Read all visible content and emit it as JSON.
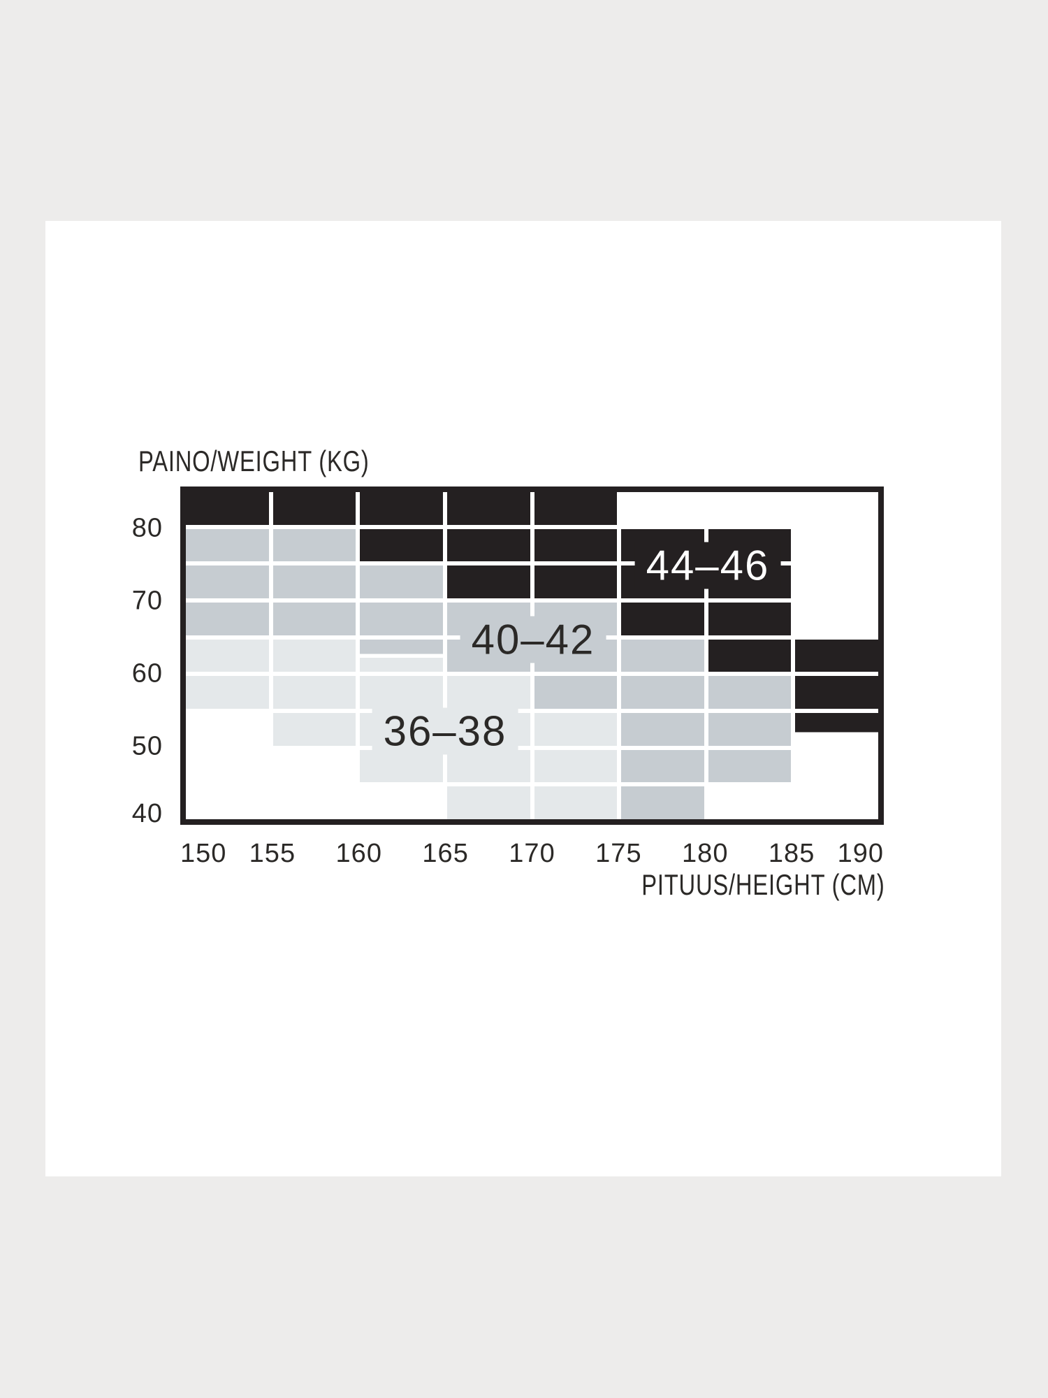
{
  "page": {
    "background_color": "#edeceb",
    "card_color": "#ffffff"
  },
  "colors": {
    "black_region": "#242021",
    "medium_gray_region": "#c6ccd1",
    "light_gray_region": "#e4e8ea",
    "empty_region": "#ffffff",
    "gridline": "#ffffff",
    "text": "#2b2927"
  },
  "chart_data": {
    "type": "heatmap",
    "title": "",
    "ylabel": "PAINO/WEIGHT (KG)",
    "xlabel": "PITUUS/HEIGHT (CM)",
    "x_ticks": [
      "150",
      "155",
      "160",
      "165",
      "170",
      "175",
      "180",
      "185",
      "190"
    ],
    "y_ticks": [
      "80",
      "70",
      "60",
      "50",
      "40"
    ],
    "x_range_cm": [
      150,
      190
    ],
    "y_range_kg": [
      40,
      85
    ],
    "grid_columns": 8,
    "grid_rows": 9,
    "column_width_cm": 5,
    "row_height_kg": 5,
    "legend_position": "labels-inside-regions",
    "grid_on": true,
    "regions": [
      {
        "label": "36–38",
        "color_key": "light_gray_region",
        "anchor": {
          "cm": 165,
          "kg": 52.5
        }
      },
      {
        "label": "40–42",
        "color_key": "medium_gray_region",
        "anchor": {
          "cm": 170,
          "kg": 65
        }
      },
      {
        "label": "44–46",
        "color_key": "black_region",
        "anchor": {
          "cm": 180,
          "kg": 75
        }
      }
    ],
    "cell_key_legend": {
      "b": "size 44–46 (black)",
      "m": "size 40–42 (medium gray)",
      "l": "size 36–38 (light gray)",
      "w": "outside size range (white)",
      "s1": "split cell: top half 40–42, bottom half 36–38",
      "s2": "split cell: top half 44–46, bottom half outside range"
    },
    "grid": [
      [
        "b",
        "b",
        "b",
        "b",
        "b",
        "w",
        "w",
        "w"
      ],
      [
        "m",
        "m",
        "b",
        "b",
        "b",
        "b",
        "b",
        "w"
      ],
      [
        "m",
        "m",
        "m",
        "b",
        "b",
        "b",
        "b",
        "w"
      ],
      [
        "m",
        "m",
        "m",
        "m",
        "m",
        "b",
        "b",
        "w"
      ],
      [
        "l",
        "l",
        "s1",
        "m",
        "m",
        "m",
        "b",
        "b"
      ],
      [
        "l",
        "l",
        "l",
        "l",
        "m",
        "m",
        "m",
        "b"
      ],
      [
        "w",
        "l",
        "l",
        "l",
        "l",
        "m",
        "m",
        "s2"
      ],
      [
        "w",
        "w",
        "l",
        "l",
        "l",
        "m",
        "m",
        "w"
      ],
      [
        "w",
        "w",
        "w",
        "l",
        "l",
        "m",
        "w",
        "w"
      ]
    ]
  }
}
